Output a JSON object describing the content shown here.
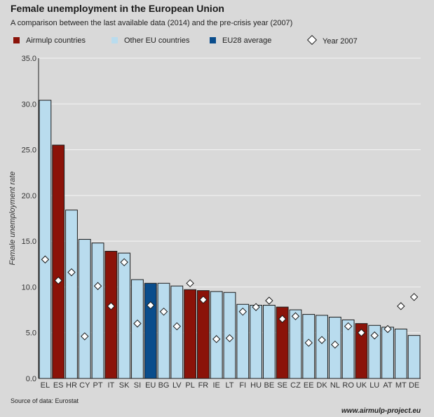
{
  "title": "Female unemployment in the European Union",
  "subtitle": "A comparison between the last available data (2014) and the pre-crisis year (2007)",
  "legend": [
    {
      "label": "Airmulp countries",
      "kind": "bar",
      "color": "#8b1309"
    },
    {
      "label": "Other EU countries",
      "kind": "bar",
      "color": "#b9dcee"
    },
    {
      "label": "EU28 average",
      "kind": "bar",
      "color": "#0a4d8c"
    },
    {
      "label": "Year 2007",
      "kind": "diamond",
      "color": "#ffffff"
    }
  ],
  "source": "Source of data: Eurostat",
  "website": "www.airmulp-project.eu",
  "chart_data": {
    "type": "bar",
    "ylabel": "Female unemployment rate",
    "xlabel": "",
    "ylim": [
      0,
      35
    ],
    "yticks": [
      "0.0",
      "5.0",
      "10.0",
      "15.0",
      "20.0",
      "25.0",
      "30.0",
      "35.0"
    ],
    "grid": true,
    "legend_position": "top",
    "categories": [
      "EL",
      "ES",
      "HR",
      "CY",
      "PT",
      "IT",
      "SK",
      "SI",
      "EU",
      "BG",
      "LV",
      "PL",
      "FR",
      "IE",
      "LT",
      "FI",
      "HU",
      "BE",
      "SE",
      "CZ",
      "EE",
      "DK",
      "NL",
      "RO",
      "UK",
      "LU",
      "AT",
      "MT",
      "DE"
    ],
    "groups": [
      "Other EU countries",
      "Airmulp countries",
      "Other EU countries",
      "Other EU countries",
      "Other EU countries",
      "Airmulp countries",
      "Other EU countries",
      "Other EU countries",
      "EU28 average",
      "Other EU countries",
      "Other EU countries",
      "Airmulp countries",
      "Airmulp countries",
      "Other EU countries",
      "Other EU countries",
      "Other EU countries",
      "Other EU countries",
      "Other EU countries",
      "Airmulp countries",
      "Other EU countries",
      "Other EU countries",
      "Other EU countries",
      "Other EU countries",
      "Other EU countries",
      "Airmulp countries",
      "Other EU countries",
      "Other EU countries",
      "Other EU countries",
      "Other EU countries"
    ],
    "series": [
      {
        "name": "2014",
        "values": [
          30.4,
          25.5,
          18.4,
          15.2,
          14.8,
          13.9,
          13.7,
          10.8,
          10.4,
          10.4,
          10.1,
          9.7,
          9.6,
          9.5,
          9.4,
          8.1,
          8.0,
          8.0,
          7.8,
          7.5,
          7.0,
          6.9,
          6.7,
          6.4,
          6.0,
          5.8,
          5.6,
          5.4,
          4.7
        ]
      },
      {
        "name": "Year 2007",
        "values": [
          13.0,
          10.7,
          11.6,
          4.6,
          10.1,
          7.9,
          12.7,
          6.0,
          8.0,
          7.3,
          5.7,
          10.4,
          8.6,
          4.3,
          4.4,
          7.3,
          7.8,
          8.5,
          6.5,
          6.8,
          3.9,
          4.2,
          3.7,
          5.7,
          5.0,
          4.7,
          5.4,
          7.9,
          8.9
        ]
      }
    ]
  }
}
